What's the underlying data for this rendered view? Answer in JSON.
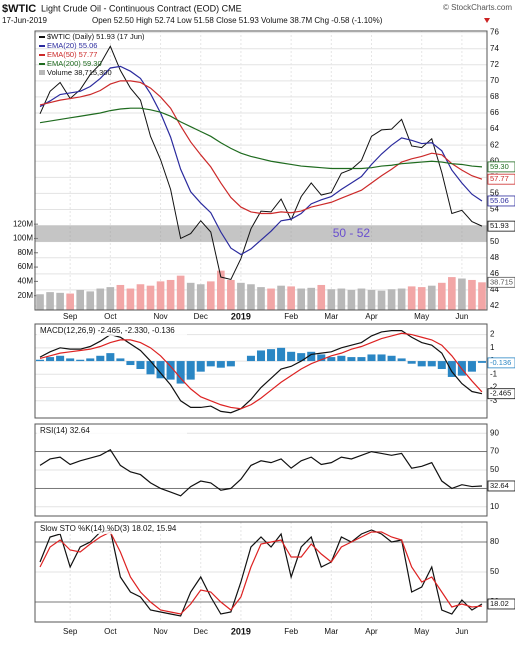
{
  "chart_data": [
    {
      "type": "stock",
      "symbol": "$WTIC",
      "title": "Light Crude Oil - Continuous Contract (EOD) CME",
      "date": "17-Jun-2019",
      "quote": "Open 52.50 High 52.74 Low 51.58 Close 51.93 Volume 38.7M Chg -0.58 (-1.10%)",
      "watermark": "© StockCharts.com",
      "categories": [
        null,
        null,
        null,
        "Sep",
        null,
        null,
        null,
        "Oct",
        null,
        null,
        null,
        null,
        "Nov",
        null,
        null,
        null,
        "Dec",
        null,
        null,
        null,
        "2019",
        null,
        null,
        null,
        null,
        "Feb",
        null,
        null,
        null,
        "Mar",
        null,
        null,
        null,
        "Apr",
        null,
        null,
        null,
        null,
        "May",
        null,
        null,
        null,
        "Jun",
        null,
        null
      ],
      "ylim": [
        41.5,
        76.2
      ],
      "yticks": [
        42,
        44,
        46,
        48,
        50,
        52,
        54,
        56,
        58,
        60,
        62,
        64,
        66,
        68,
        70,
        72,
        74,
        76
      ],
      "series": [
        {
          "name": "$WTIC (Daily) 51.93 (17 Jun)",
          "color": "#111111",
          "end_label": "51.93",
          "values": [
            65.9,
            68.7,
            69.8,
            67.8,
            68.9,
            70.8,
            72.1,
            74.3,
            71.3,
            69.1,
            67.6,
            63.1,
            60.2,
            56.5,
            50.4,
            51.0,
            52.6,
            51.2,
            45.6,
            45.3,
            47.9,
            51.6,
            53.8,
            53.7,
            55.3,
            52.7,
            55.6,
            57.3,
            55.8,
            56.1,
            58.5,
            59.0,
            60.1,
            63.1,
            63.9,
            64.0,
            65.2,
            61.9,
            61.7,
            62.8,
            58.6,
            53.5,
            53.9,
            52.5,
            51.93
          ]
        },
        {
          "name": "EMA(20) 55.06",
          "color": "#2b2b9e",
          "end_label": "55.06",
          "values": [
            66.8,
            67.5,
            68.3,
            68.5,
            68.7,
            69.3,
            70.3,
            71.6,
            71.8,
            71.2,
            70.3,
            68.4,
            66.0,
            63.0,
            59.0,
            56.2,
            54.8,
            53.6,
            51.2,
            49.2,
            48.4,
            49.1,
            50.2,
            51.3,
            52.6,
            52.8,
            53.5,
            54.7,
            55.2,
            55.6,
            56.5,
            57.3,
            58.1,
            59.6,
            60.9,
            62.0,
            62.9,
            62.6,
            62.2,
            62.3,
            61.3,
            58.9,
            57.3,
            55.9,
            55.06
          ]
        },
        {
          "name": "EMA(50) 57.77",
          "color": "#cc2a2a",
          "end_label": "57.77",
          "values": [
            67.0,
            67.3,
            67.6,
            67.8,
            68.0,
            68.3,
            68.8,
            69.6,
            70.0,
            70.0,
            69.8,
            69.1,
            68.0,
            66.6,
            64.4,
            62.4,
            60.8,
            59.3,
            57.3,
            55.5,
            54.3,
            53.7,
            53.5,
            53.5,
            53.7,
            53.6,
            53.8,
            54.3,
            54.6,
            54.9,
            55.4,
            55.9,
            56.4,
            57.3,
            58.2,
            59.0,
            59.9,
            60.3,
            60.6,
            61.0,
            60.8,
            59.7,
            58.9,
            58.2,
            57.77
          ]
        },
        {
          "name": "EMA(200) 59.30",
          "color": "#1f6b1f",
          "end_label": "59.30",
          "values": [
            64.8,
            65.0,
            65.2,
            65.4,
            65.6,
            65.8,
            66.0,
            66.3,
            66.5,
            66.6,
            66.6,
            66.4,
            66.1,
            65.6,
            64.9,
            64.3,
            63.7,
            63.1,
            62.3,
            61.6,
            61.0,
            60.6,
            60.3,
            60.0,
            59.8,
            59.6,
            59.4,
            59.3,
            59.2,
            59.1,
            59.1,
            59.1,
            59.1,
            59.2,
            59.4,
            59.5,
            59.7,
            59.8,
            59.9,
            60.0,
            59.9,
            59.7,
            59.6,
            59.4,
            59.3
          ]
        }
      ],
      "volume": {
        "name": "Volume 38,715,300",
        "up_color": "#b8b8b8",
        "down_color": "#f2a6a6",
        "end_label": "38.715",
        "ylim": [
          0,
          390
        ],
        "yticks": [
          {
            "value": 20,
            "label": "20M"
          },
          {
            "value": 40,
            "label": "40M"
          },
          {
            "value": 60,
            "label": "60M"
          },
          {
            "value": 80,
            "label": "80M"
          },
          {
            "value": 100,
            "label": "100M"
          },
          {
            "value": 120,
            "label": "120M"
          }
        ],
        "values": [
          22,
          25,
          24,
          23,
          28,
          26,
          30,
          32,
          35,
          30,
          36,
          34,
          40,
          42,
          48,
          38,
          36,
          40,
          55,
          42,
          38,
          36,
          32,
          30,
          34,
          33,
          30,
          31,
          35,
          29,
          30,
          28,
          30,
          28,
          27,
          29,
          30,
          33,
          32,
          34,
          38,
          46,
          44,
          42,
          38.7
        ]
      },
      "band": {
        "label": "50 - 52",
        "from": 50,
        "to": 52,
        "color": "#6a4fcf"
      }
    },
    {
      "type": "macd",
      "title": "MACD(12,26,9) -2.465, -2.330, -0.136",
      "ylim": [
        -4.3,
        2.8
      ],
      "yticks": [
        -3,
        -2,
        -1,
        0,
        1,
        2
      ],
      "series": [
        {
          "color": "#111111",
          "style": "line",
          "end_label": "-2.465",
          "values": [
            0.3,
            0.7,
            1.0,
            0.9,
            0.9,
            1.1,
            1.5,
            2.0,
            1.8,
            1.3,
            0.8,
            0.0,
            -0.9,
            -1.8,
            -3.0,
            -3.5,
            -3.5,
            -3.4,
            -3.8,
            -3.9,
            -3.6,
            -2.9,
            -2.0,
            -1.3,
            -0.6,
            -0.4,
            0.0,
            0.5,
            0.6,
            0.7,
            1.0,
            1.2,
            1.4,
            1.9,
            2.2,
            2.3,
            2.3,
            1.8,
            1.4,
            1.2,
            0.6,
            -0.8,
            -1.7,
            -2.3,
            -2.465
          ]
        },
        {
          "color": "#dd2222",
          "style": "line",
          "values": [
            0.2,
            0.4,
            0.6,
            0.7,
            0.8,
            0.9,
            1.1,
            1.4,
            1.6,
            1.6,
            1.4,
            1.0,
            0.4,
            -0.4,
            -1.3,
            -2.1,
            -2.7,
            -3.0,
            -3.3,
            -3.5,
            -3.6,
            -3.3,
            -2.8,
            -2.2,
            -1.6,
            -1.1,
            -0.6,
            -0.2,
            0.1,
            0.4,
            0.6,
            0.9,
            1.1,
            1.4,
            1.7,
            1.9,
            2.1,
            2.0,
            1.8,
            1.6,
            1.2,
            0.4,
            -0.6,
            -1.5,
            -2.33
          ]
        },
        {
          "color": "#2a86c4",
          "style": "bar",
          "end_label": "-0.136",
          "values": [
            0.1,
            0.3,
            0.4,
            0.2,
            0.1,
            0.2,
            0.4,
            0.6,
            0.2,
            -0.3,
            -0.6,
            -1.0,
            -1.3,
            -1.4,
            -1.7,
            -1.4,
            -0.8,
            -0.4,
            -0.5,
            -0.4,
            0.0,
            0.4,
            0.8,
            0.9,
            1.0,
            0.7,
            0.6,
            0.7,
            0.5,
            0.3,
            0.4,
            0.3,
            0.3,
            0.5,
            0.5,
            0.4,
            0.2,
            -0.2,
            -0.4,
            -0.4,
            -0.6,
            -1.2,
            -1.1,
            -0.8,
            -0.136
          ]
        }
      ]
    },
    {
      "type": "rsi",
      "title": "RSI(14) 32.64",
      "ylim": [
        0,
        100
      ],
      "yticks": [
        10,
        30,
        50,
        70,
        90
      ],
      "levels": [
        30,
        70
      ],
      "series": [
        {
          "color": "#111111",
          "style": "line",
          "end_label": "32.64",
          "values": [
            55,
            62,
            64,
            56,
            60,
            63,
            66,
            72,
            55,
            48,
            45,
            36,
            30,
            26,
            22,
            32,
            38,
            36,
            28,
            30,
            40,
            55,
            60,
            58,
            62,
            52,
            60,
            64,
            56,
            58,
            64,
            62,
            66,
            70,
            68,
            66,
            68,
            52,
            54,
            58,
            38,
            30,
            34,
            32,
            32.64
          ]
        }
      ]
    },
    {
      "type": "sto",
      "title": "Slow STO %K(14) %D(3) 18.02, 15.94",
      "ylim": [
        0,
        100
      ],
      "yticks": [
        20,
        50,
        80
      ],
      "levels": [
        20,
        80
      ],
      "categories": [
        null,
        null,
        null,
        "Sep",
        null,
        null,
        null,
        "Oct",
        null,
        null,
        null,
        null,
        "Nov",
        null,
        null,
        null,
        "Dec",
        null,
        null,
        null,
        "2019",
        null,
        null,
        null,
        null,
        "Feb",
        null,
        null,
        null,
        "Mar",
        null,
        null,
        null,
        "Apr",
        null,
        null,
        null,
        null,
        "May",
        null,
        null,
        null,
        "Jun",
        null,
        null
      ],
      "series": [
        {
          "color": "#111111",
          "style": "line",
          "end_label": "18.02",
          "values": [
            60,
            85,
            88,
            55,
            75,
            80,
            90,
            92,
            45,
            30,
            25,
            12,
            10,
            8,
            6,
            30,
            45,
            25,
            8,
            10,
            40,
            75,
            85,
            75,
            88,
            45,
            75,
            85,
            55,
            60,
            85,
            80,
            88,
            92,
            88,
            80,
            82,
            30,
            35,
            55,
            12,
            8,
            22,
            12,
            18.02
          ]
        },
        {
          "color": "#dd2222",
          "style": "line",
          "values": [
            55,
            75,
            82,
            72,
            70,
            78,
            85,
            90,
            70,
            45,
            30,
            20,
            12,
            10,
            8,
            18,
            32,
            30,
            20,
            12,
            25,
            55,
            78,
            80,
            82,
            65,
            65,
            78,
            68,
            60,
            75,
            80,
            85,
            90,
            90,
            85,
            82,
            55,
            40,
            45,
            30,
            15,
            18,
            15,
            15.94
          ]
        }
      ]
    }
  ]
}
